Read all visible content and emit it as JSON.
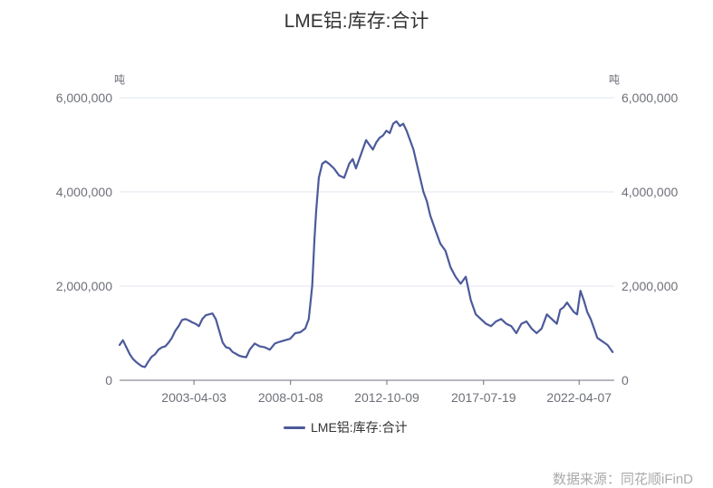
{
  "title": "LME铝:库存:合计",
  "source": "数据来源：同花顺iFinD",
  "colors": {
    "series": "#4c5a9a",
    "grid": "#e0e6f1",
    "axis": "#6e7079"
  },
  "chart_data": {
    "type": "line",
    "title": "LME铝:库存:合计",
    "y_unit_left": "吨",
    "y_unit_right": "吨",
    "ylim": [
      0,
      6000000
    ],
    "y_ticks": [
      "0",
      "2,000,000",
      "4,000,000",
      "6,000,000"
    ],
    "x_ticks": [
      "2003-04-03",
      "2008-01-08",
      "2012-10-09",
      "2017-07-19",
      "2022-04-07"
    ],
    "xlim": [
      "1999-08-01",
      "2023-12-31"
    ],
    "grid": true,
    "legend_position": "bottom",
    "series": [
      {
        "name": "LME铝:库存:合计",
        "x": [
          "1999-08-01",
          "1999-10-01",
          "1999-12-01",
          "2000-02-01",
          "2000-04-01",
          "2000-06-01",
          "2000-09-01",
          "2000-11-01",
          "2001-01-01",
          "2001-03-01",
          "2001-05-01",
          "2001-07-01",
          "2001-09-01",
          "2001-11-01",
          "2002-01-01",
          "2002-03-01",
          "2002-05-01",
          "2002-07-01",
          "2002-09-01",
          "2002-11-01",
          "2003-01-01",
          "2003-03-01",
          "2003-05-01",
          "2003-07-01",
          "2003-09-01",
          "2003-11-01",
          "2004-01-01",
          "2004-03-01",
          "2004-05-01",
          "2004-07-01",
          "2004-09-01",
          "2004-11-01",
          "2005-01-01",
          "2005-03-01",
          "2005-05-01",
          "2005-07-01",
          "2005-09-01",
          "2005-11-01",
          "2006-01-01",
          "2006-04-01",
          "2006-07-01",
          "2006-10-01",
          "2007-01-01",
          "2007-04-01",
          "2007-07-01",
          "2007-10-01",
          "2008-01-01",
          "2008-04-01",
          "2008-07-01",
          "2008-10-01",
          "2008-12-01",
          "2009-02-01",
          "2009-03-15",
          "2009-04-15",
          "2009-06-01",
          "2009-08-01",
          "2009-10-01",
          "2009-12-01",
          "2010-03-01",
          "2010-06-01",
          "2010-09-01",
          "2010-12-01",
          "2011-02-01",
          "2011-04-01",
          "2011-06-01",
          "2011-08-01",
          "2011-10-01",
          "2011-12-01",
          "2012-02-01",
          "2012-04-01",
          "2012-06-01",
          "2012-08-01",
          "2012-10-01",
          "2012-12-01",
          "2013-02-01",
          "2013-04-01",
          "2013-06-01",
          "2013-08-01",
          "2013-10-01",
          "2013-12-01",
          "2014-02-01",
          "2014-04-01",
          "2014-06-01",
          "2014-08-01",
          "2014-10-01",
          "2014-12-01",
          "2015-03-01",
          "2015-06-01",
          "2015-09-01",
          "2015-12-01",
          "2016-03-01",
          "2016-06-01",
          "2016-09-01",
          "2016-12-01",
          "2017-03-01",
          "2017-06-01",
          "2017-09-01",
          "2017-12-01",
          "2018-03-01",
          "2018-06-01",
          "2018-09-01",
          "2018-12-01",
          "2019-03-01",
          "2019-06-01",
          "2019-09-01",
          "2019-12-01",
          "2020-03-01",
          "2020-06-01",
          "2020-09-01",
          "2020-12-01",
          "2021-03-01",
          "2021-05-01",
          "2021-07-01",
          "2021-09-01",
          "2021-11-01",
          "2022-01-01",
          "2022-03-01",
          "2022-05-01",
          "2022-07-01",
          "2022-09-01",
          "2022-11-01",
          "2023-01-01",
          "2023-03-01",
          "2023-05-01",
          "2023-07-01",
          "2023-09-01",
          "2023-12-01"
        ],
        "values": [
          750000,
          850000,
          700000,
          550000,
          450000,
          380000,
          300000,
          280000,
          400000,
          500000,
          550000,
          650000,
          700000,
          720000,
          800000,
          900000,
          1050000,
          1150000,
          1280000,
          1300000,
          1270000,
          1230000,
          1200000,
          1150000,
          1300000,
          1380000,
          1400000,
          1420000,
          1300000,
          1050000,
          800000,
          700000,
          680000,
          600000,
          560000,
          520000,
          500000,
          490000,
          650000,
          780000,
          720000,
          700000,
          650000,
          780000,
          820000,
          850000,
          880000,
          1000000,
          1020000,
          1100000,
          1300000,
          2000000,
          3000000,
          3600000,
          4300000,
          4600000,
          4650000,
          4600000,
          4500000,
          4350000,
          4300000,
          4600000,
          4700000,
          4500000,
          4700000,
          4900000,
          5100000,
          5000000,
          4900000,
          5050000,
          5150000,
          5200000,
          5300000,
          5250000,
          5450000,
          5500000,
          5400000,
          5450000,
          5300000,
          5100000,
          4900000,
          4600000,
          4300000,
          4000000,
          3800000,
          3500000,
          3200000,
          2900000,
          2750000,
          2400000,
          2200000,
          2050000,
          2200000,
          1700000,
          1400000,
          1300000,
          1200000,
          1150000,
          1250000,
          1300000,
          1200000,
          1150000,
          1000000,
          1200000,
          1250000,
          1100000,
          1000000,
          1100000,
          1400000,
          1300000,
          1200000,
          1500000,
          1550000,
          1650000,
          1550000,
          1450000,
          1400000,
          1900000,
          1700000,
          1450000,
          1300000,
          1100000,
          900000,
          850000,
          800000,
          750000,
          600000
        ]
      }
    ]
  }
}
